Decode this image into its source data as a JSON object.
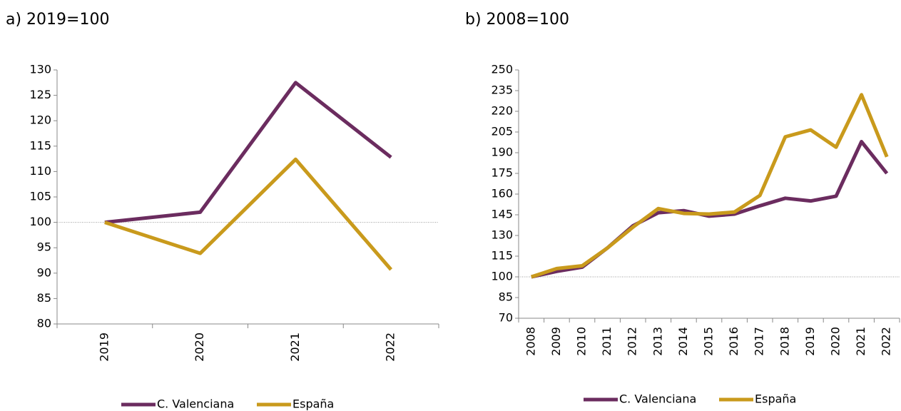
{
  "chart_data": [
    {
      "type": "line",
      "title": "a) 2019=100",
      "categories": [
        "2019",
        "2020",
        "2021",
        "2022"
      ],
      "series": [
        {
          "name": "C. Valenciana",
          "color": "#6b2c5f",
          "values": [
            100,
            102,
            127.5,
            112.8
          ]
        },
        {
          "name": "España",
          "color": "#c99a1c",
          "values": [
            100,
            93.9,
            112.4,
            90.7
          ]
        }
      ],
      "ylim": [
        80,
        130
      ],
      "yticks": [
        80,
        85,
        90,
        95,
        100,
        105,
        110,
        115,
        120,
        125,
        130
      ],
      "reference_line": 100,
      "legend": "bottom"
    },
    {
      "type": "line",
      "title": "b) 2008=100",
      "categories": [
        "2008",
        "2009",
        "2010",
        "2011",
        "2012",
        "2013",
        "2014",
        "2015",
        "2016",
        "2017",
        "2018",
        "2019",
        "2020",
        "2021",
        "2022"
      ],
      "series": [
        {
          "name": "C. Valenciana",
          "color": "#6b2c5f",
          "values": [
            100,
            104,
            107,
            121,
            137,
            146.5,
            148,
            144,
            145.5,
            151.5,
            157,
            155,
            158.5,
            198,
            175
          ]
        },
        {
          "name": "España",
          "color": "#c99a1c",
          "values": [
            100,
            106,
            108,
            121,
            136,
            149.5,
            146,
            145.5,
            147,
            159,
            201.5,
            206.5,
            194,
            232,
            187
          ]
        }
      ],
      "ylim": [
        70,
        250
      ],
      "yticks": [
        70,
        85,
        100,
        115,
        130,
        145,
        160,
        175,
        190,
        205,
        220,
        235,
        250
      ],
      "reference_line": 100,
      "legend": "bottom"
    }
  ]
}
